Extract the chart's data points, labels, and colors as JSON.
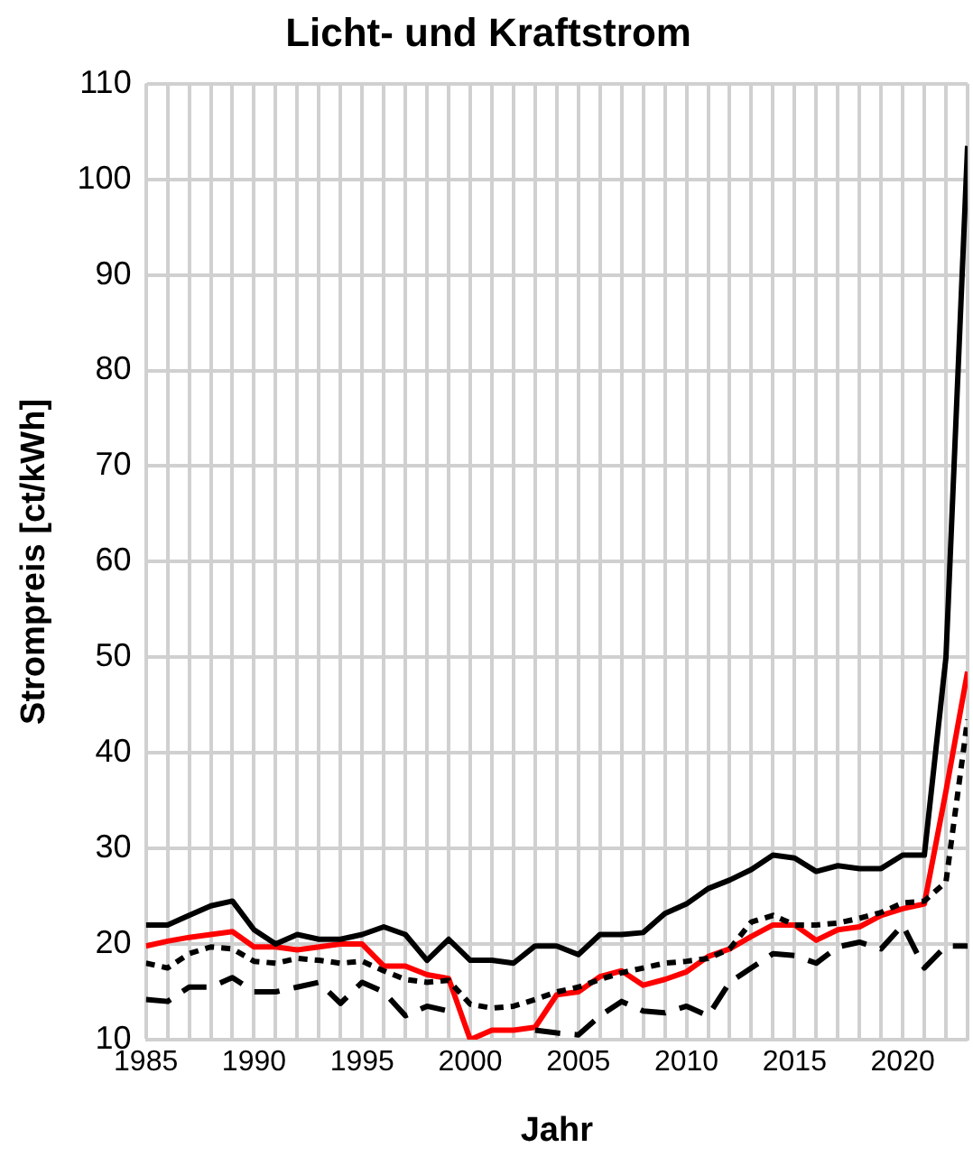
{
  "chart_data": {
    "type": "line",
    "title": "Licht- und Kraftstrom",
    "xlabel": "Jahr",
    "ylabel": "Strompreis [ct/kWh]",
    "x": [
      1985,
      1986,
      1987,
      1988,
      1989,
      1990,
      1991,
      1992,
      1993,
      1994,
      1995,
      1996,
      1997,
      1998,
      1999,
      2000,
      2001,
      2002,
      2003,
      2004,
      2005,
      2006,
      2007,
      2008,
      2009,
      2010,
      2011,
      2012,
      2013,
      2014,
      2015,
      2016,
      2017,
      2018,
      2019,
      2020,
      2021,
      2022,
      2023
    ],
    "series": [
      {
        "color": "#000000",
        "line_style": "solid",
        "values": [
          22,
          22,
          23,
          24,
          24.5,
          21.5,
          20,
          21,
          20.5,
          20.5,
          21,
          21.8,
          21,
          18.3,
          20.5,
          18.3,
          18.3,
          18,
          19.8,
          19.8,
          18.9,
          21,
          21,
          21.2,
          23.2,
          24.2,
          25.8,
          26.7,
          27.8,
          29.3,
          29,
          27.6,
          28.2,
          27.9,
          27.9,
          29.3,
          29.3,
          50,
          103.5
        ]
      },
      {
        "color": "#000000",
        "line_style": "dotted",
        "values": [
          18,
          17.5,
          19,
          19.7,
          19.5,
          18.2,
          18,
          18.5,
          18.3,
          18,
          18.2,
          17.2,
          16.3,
          16,
          16.2,
          13.7,
          13.3,
          13.5,
          14.2,
          15,
          15.5,
          16.3,
          17,
          17.5,
          18,
          18.2,
          18.5,
          19.5,
          22.3,
          23,
          22,
          22,
          22.2,
          22.7,
          23.3,
          24.3,
          24.5,
          26.5,
          43.5
        ]
      },
      {
        "color": "#000000",
        "line_style": "dashed",
        "values": [
          14.2,
          14,
          15.5,
          15.5,
          16.5,
          15,
          15,
          15.5,
          16,
          13.8,
          16,
          15,
          12.5,
          13.5,
          13,
          null,
          null,
          null,
          11,
          10.7,
          10.5,
          12.5,
          14,
          13,
          12.8,
          13.5,
          12.5,
          16,
          17.5,
          19,
          18.8,
          18,
          19.7,
          20.2,
          19.5,
          22,
          17.5,
          19.8,
          19.8
        ]
      },
      {
        "color": "#ff0000",
        "line_style": "solid",
        "values": [
          19.8,
          20.3,
          20.7,
          21,
          21.3,
          19.7,
          19.7,
          19.4,
          19.7,
          20,
          20,
          17.7,
          17.7,
          16.8,
          16.4,
          10,
          11,
          11,
          11.3,
          14.7,
          15,
          16.6,
          17.2,
          15.7,
          16.3,
          17.1,
          18.7,
          19.5,
          20.8,
          22,
          22,
          20.4,
          21.5,
          21.8,
          23,
          23.7,
          24.2,
          36,
          48.5
        ]
      }
    ],
    "xlim": [
      1985,
      2023
    ],
    "xticks": [
      1985,
      {
        "value": 1986,
        "label": null
      },
      {
        "value": 1987,
        "label": null
      },
      {
        "value": 1988,
        "label": null
      },
      {
        "value": 1989,
        "label": null
      },
      1990,
      {
        "value": 1991,
        "label": null
      },
      {
        "value": 1992,
        "label": null
      },
      {
        "value": 1993,
        "label": null
      },
      {
        "value": 1994,
        "label": null
      },
      1995,
      {
        "value": 1996,
        "label": null
      },
      {
        "value": 1997,
        "label": null
      },
      {
        "value": 1998,
        "label": null
      },
      {
        "value": 1999,
        "label": null
      },
      2000,
      {
        "value": 2001,
        "label": null
      },
      {
        "value": 2002,
        "label": null
      },
      {
        "value": 2003,
        "label": null
      },
      {
        "value": 2004,
        "label": null
      },
      2005,
      {
        "value": 2006,
        "label": null
      },
      {
        "value": 2007,
        "label": null
      },
      {
        "value": 2008,
        "label": null
      },
      {
        "value": 2009,
        "label": null
      },
      2010,
      {
        "value": 2011,
        "label": null
      },
      {
        "value": 2012,
        "label": null
      },
      {
        "value": 2013,
        "label": null
      },
      {
        "value": 2014,
        "label": null
      },
      2015,
      {
        "value": 2016,
        "label": null
      },
      {
        "value": 2017,
        "label": null
      },
      {
        "value": 2018,
        "label": null
      },
      {
        "value": 2019,
        "label": null
      },
      2020,
      {
        "value": 2021,
        "label": null
      },
      {
        "value": 2022,
        "label": null
      },
      {
        "value": 2023,
        "label": null
      }
    ],
    "ylim": [
      10,
      110
    ],
    "yticks": [
      10,
      20,
      30,
      40,
      50,
      60,
      70,
      80,
      90,
      100,
      110
    ],
    "grid": true,
    "legend": false,
    "marker": "none"
  }
}
